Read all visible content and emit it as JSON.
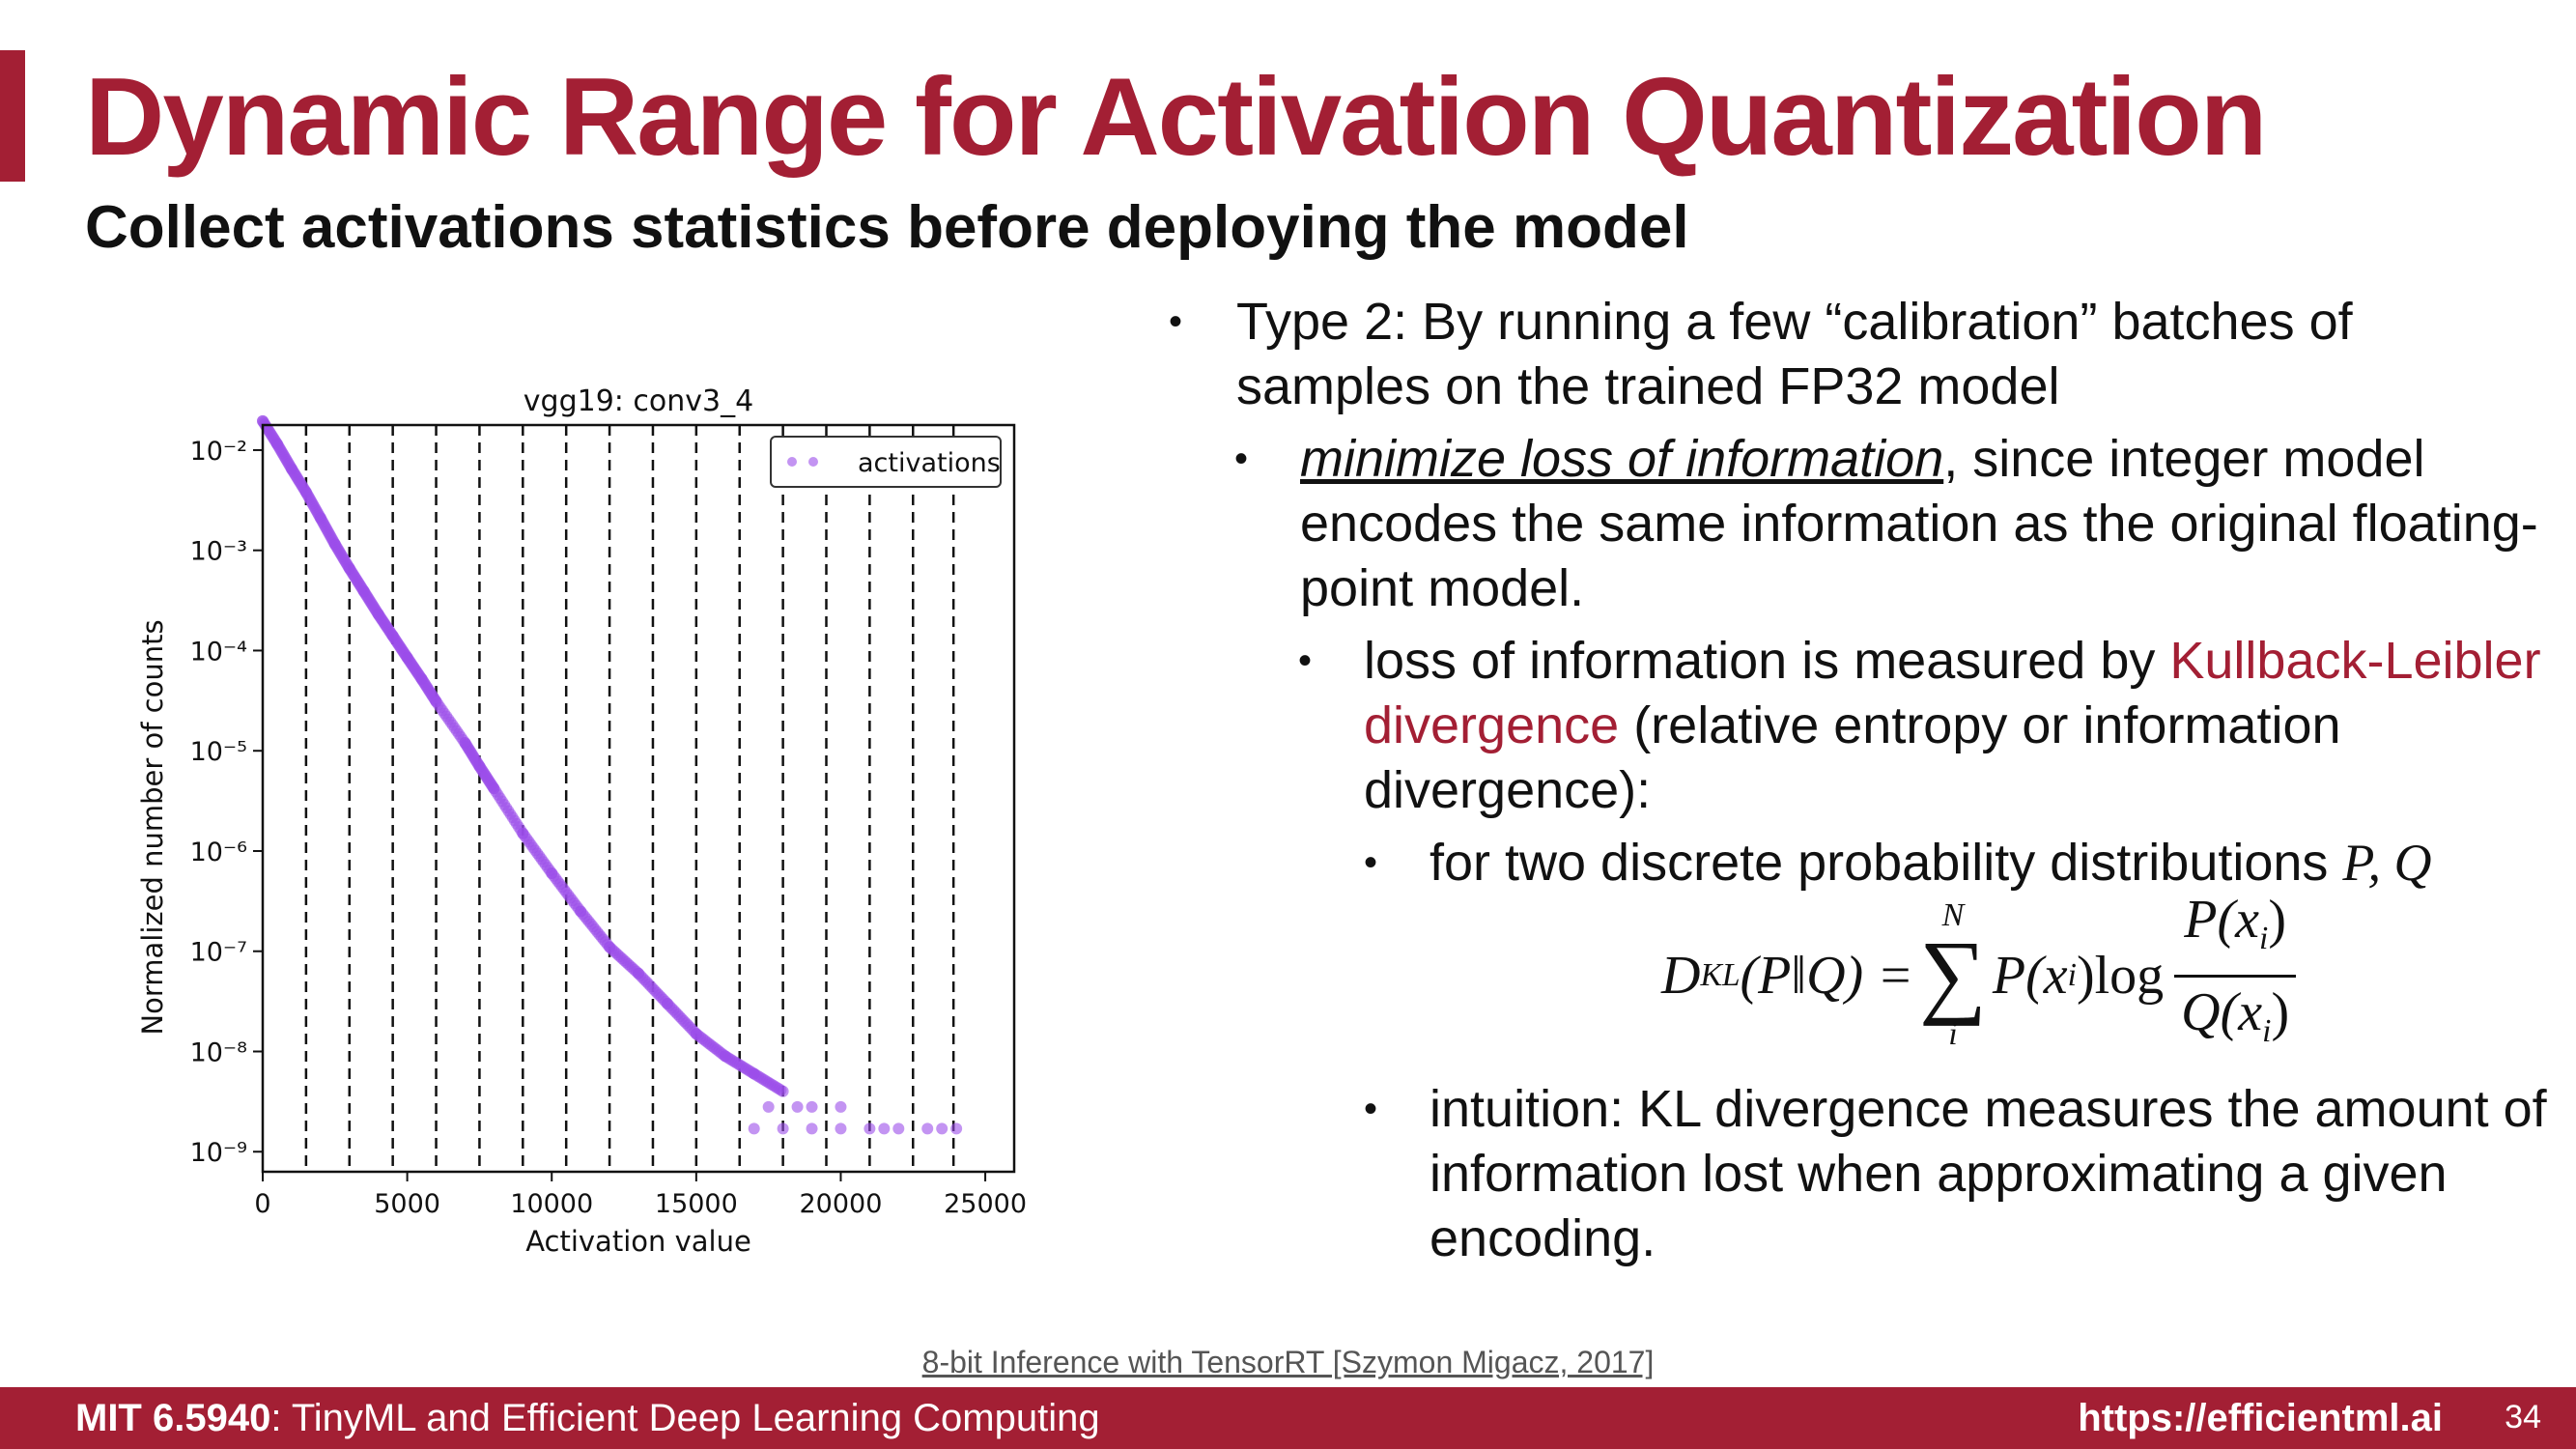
{
  "slide": {
    "title": "Dynamic Range for Activation Quantization",
    "subtitle": "Collect activations statistics before deploying the model",
    "citation": "8-bit Inference with TensorRT [Szymon Migacz, 2017]",
    "footer_course_code": "MIT 6.5940",
    "footer_course_name": ": TinyML and Efficient Deep Learning Computing",
    "footer_url": "https://efficientml.ai",
    "page_number": "34",
    "accent_color": "#a31f34"
  },
  "bullets": {
    "b1": "Type 2: By running a few “calibration” batches of samples on the trained FP32 model",
    "b2_emph": "minimize loss of information",
    "b2_rest": ", since integer model encodes the same information as the original floating-point model.",
    "b3_pre": "loss of information is measured by ",
    "b3_red": "Kullback-Leibler divergence",
    "b3_post": " (relative entropy or information divergence):",
    "b4_text": "for two discrete probability distributions ",
    "b4_math": "P, Q",
    "b5": "intuition: KL divergence measures the amount of information lost when approximating a given encoding."
  },
  "formula": {
    "lhs_D": "D",
    "lhs_sub": "KL",
    "lhs_args": "(P‖Q) =",
    "sum_top": "N",
    "sum_bottom": "i",
    "term": "P(x",
    "term_sub": "i",
    "term_end": ")log",
    "num": "P(x",
    "num_sub": "i",
    "num_end": ")",
    "den": "Q(x",
    "den_sub": "i",
    "den_end": ")"
  },
  "chart_data": {
    "type": "scatter",
    "title": "vgg19: conv3_4",
    "xlabel": "Activation value",
    "ylabel": "Normalized number of counts",
    "xlim": [
      0,
      26000
    ],
    "ylim_log10": [
      -9.2,
      -1.75
    ],
    "y_scale": "log",
    "x_ticks": [
      0,
      5000,
      10000,
      15000,
      20000,
      25000
    ],
    "x_tick_labels": [
      "0",
      "5000",
      "10000",
      "15000",
      "20000",
      "25000"
    ],
    "y_ticks_exp": [
      -2,
      -3,
      -4,
      -5,
      -6,
      -7,
      -8,
      -9
    ],
    "y_tick_labels": [
      "10⁻²",
      "10⁻³",
      "10⁻⁴",
      "10⁻⁵",
      "10⁻⁶",
      "10⁻⁷",
      "10⁻⁸",
      "10⁻⁹"
    ],
    "threshold_lines_x": [
      1500,
      3000,
      4500,
      6000,
      7500,
      9000,
      10500,
      12000,
      13500,
      15000,
      16500,
      18000,
      19500,
      21000,
      22500,
      23900
    ],
    "series": [
      {
        "name": "activations",
        "color": "#9b4dea",
        "points": [
          [
            0,
            0.0195
          ],
          [
            500,
            0.0115
          ],
          [
            1000,
            0.0065
          ],
          [
            1500,
            0.0038
          ],
          [
            2000,
            0.0021
          ],
          [
            2500,
            0.00115
          ],
          [
            3000,
            0.00066
          ],
          [
            3500,
            0.00039
          ],
          [
            4000,
            0.00023
          ],
          [
            4500,
            0.00014
          ],
          [
            5000,
            8.5e-05
          ],
          [
            5500,
            5.2e-05
          ],
          [
            6000,
            3.1e-05
          ],
          [
            7000,
            1.2e-05
          ],
          [
            7500,
            7e-06
          ],
          [
            8000,
            4.2e-06
          ],
          [
            9000,
            1.5e-06
          ],
          [
            10000,
            6e-07
          ],
          [
            11000,
            2.5e-07
          ],
          [
            12000,
            1.1e-07
          ],
          [
            13000,
            6e-08
          ],
          [
            14000,
            3e-08
          ],
          [
            15000,
            1.5e-08
          ],
          [
            16000,
            9e-09
          ],
          [
            17000,
            6e-09
          ],
          [
            18000,
            4e-09
          ],
          [
            17500,
            2.8e-09
          ],
          [
            18500,
            2.8e-09
          ],
          [
            19000,
            2.8e-09
          ],
          [
            20000,
            2.8e-09
          ],
          [
            21000,
            1.7e-09
          ],
          [
            22000,
            1.7e-09
          ],
          [
            17000,
            1.7e-09
          ],
          [
            18000,
            1.7e-09
          ],
          [
            19000,
            1.7e-09
          ],
          [
            20000,
            1.7e-09
          ],
          [
            21500,
            1.7e-09
          ],
          [
            23000,
            1.7e-09
          ],
          [
            23500,
            1.7e-09
          ],
          [
            24000,
            1.7e-09
          ]
        ]
      }
    ]
  }
}
